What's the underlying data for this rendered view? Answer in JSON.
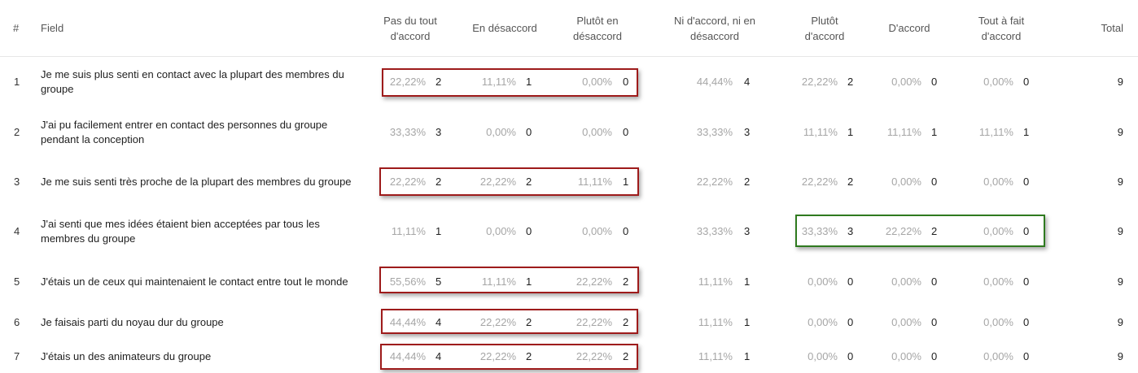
{
  "columns": {
    "index": "#",
    "field": "Field",
    "c1": "Pas du tout d'accord",
    "c2": "En désaccord",
    "c3": "Plutôt en désaccord",
    "c4": "Ni d'accord, ni en désaccord",
    "c5": "Plutôt d'accord",
    "c6": "D'accord",
    "c7": "Tout à fait d'accord",
    "total": "Total"
  },
  "rows": [
    {
      "index": "1",
      "field": "Je me suis plus senti en contact avec la plupart des membres du groupe",
      "cells": [
        [
          "22,22%",
          "2"
        ],
        [
          "11,11%",
          "1"
        ],
        [
          "0,00%",
          "0"
        ],
        [
          "44,44%",
          "4"
        ],
        [
          "22,22%",
          "2"
        ],
        [
          "0,00%",
          "0"
        ],
        [
          "0,00%",
          "0"
        ]
      ],
      "total": "9"
    },
    {
      "index": "2",
      "field": "J'ai pu facilement entrer en contact des personnes du groupe pendant la conception",
      "cells": [
        [
          "33,33%",
          "3"
        ],
        [
          "0,00%",
          "0"
        ],
        [
          "0,00%",
          "0"
        ],
        [
          "33,33%",
          "3"
        ],
        [
          "11,11%",
          "1"
        ],
        [
          "11,11%",
          "1"
        ],
        [
          "11,11%",
          "1"
        ]
      ],
      "total": "9"
    },
    {
      "index": "3",
      "field": "Je me suis senti très proche de la plupart des membres du groupe",
      "cells": [
        [
          "22,22%",
          "2"
        ],
        [
          "22,22%",
          "2"
        ],
        [
          "11,11%",
          "1"
        ],
        [
          "22,22%",
          "2"
        ],
        [
          "22,22%",
          "2"
        ],
        [
          "0,00%",
          "0"
        ],
        [
          "0,00%",
          "0"
        ]
      ],
      "total": "9"
    },
    {
      "index": "4",
      "field": "J'ai senti que mes idées étaient bien acceptées par tous les membres du groupe",
      "cells": [
        [
          "11,11%",
          "1"
        ],
        [
          "0,00%",
          "0"
        ],
        [
          "0,00%",
          "0"
        ],
        [
          "33,33%",
          "3"
        ],
        [
          "33,33%",
          "3"
        ],
        [
          "22,22%",
          "2"
        ],
        [
          "0,00%",
          "0"
        ]
      ],
      "total": "9"
    },
    {
      "index": "5",
      "field": "J'étais un de ceux qui maintenaient le contact entre tout le monde",
      "cells": [
        [
          "55,56%",
          "5"
        ],
        [
          "11,11%",
          "1"
        ],
        [
          "22,22%",
          "2"
        ],
        [
          "11,11%",
          "1"
        ],
        [
          "0,00%",
          "0"
        ],
        [
          "0,00%",
          "0"
        ],
        [
          "0,00%",
          "0"
        ]
      ],
      "total": "9"
    },
    {
      "index": "6",
      "field": "Je faisais parti du noyau dur du groupe",
      "cells": [
        [
          "44,44%",
          "4"
        ],
        [
          "22,22%",
          "2"
        ],
        [
          "22,22%",
          "2"
        ],
        [
          "11,11%",
          "1"
        ],
        [
          "0,00%",
          "0"
        ],
        [
          "0,00%",
          "0"
        ],
        [
          "0,00%",
          "0"
        ]
      ],
      "total": "9"
    },
    {
      "index": "7",
      "field": "J'étais un des animateurs du groupe",
      "cells": [
        [
          "44,44%",
          "4"
        ],
        [
          "22,22%",
          "2"
        ],
        [
          "22,22%",
          "2"
        ],
        [
          "11,11%",
          "1"
        ],
        [
          "0,00%",
          "0"
        ],
        [
          "0,00%",
          "0"
        ],
        [
          "0,00%",
          "0"
        ]
      ],
      "total": "9"
    }
  ],
  "highlights": [
    {
      "row": 0,
      "from": 0,
      "to": 2,
      "color": "#9e1b1b"
    },
    {
      "row": 2,
      "from": 0,
      "to": 2,
      "color": "#9e1b1b"
    },
    {
      "row": 3,
      "from": 4,
      "to": 6,
      "color": "#2f7a1f"
    },
    {
      "row": 4,
      "from": 0,
      "to": 2,
      "color": "#9e1b1b"
    },
    {
      "row": 5,
      "from": 0,
      "to": 2,
      "color": "#9e1b1b"
    },
    {
      "row": 6,
      "from": 0,
      "to": 2,
      "color": "#9e1b1b"
    }
  ]
}
